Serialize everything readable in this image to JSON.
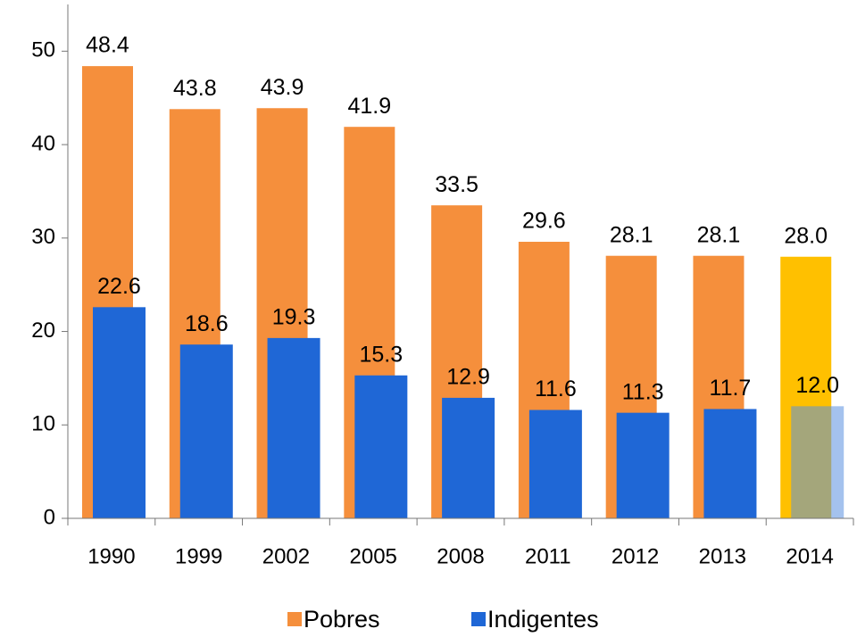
{
  "chart_data": {
    "type": "bar",
    "categories": [
      "1990",
      "1999",
      "2002",
      "2005",
      "2008",
      "2011",
      "2012",
      "2013",
      "2014"
    ],
    "series": [
      {
        "name": "Pobres",
        "color": "#f58f3c",
        "point_colors": [
          "#f58f3c",
          "#f58f3c",
          "#f58f3c",
          "#f58f3c",
          "#f58f3c",
          "#f58f3c",
          "#f58f3c",
          "#f58f3c",
          "#ffc000"
        ],
        "values": [
          48.4,
          43.8,
          43.9,
          41.9,
          33.5,
          29.6,
          28.1,
          28.1,
          28.0
        ],
        "value_labels": [
          "48.4",
          "43.8",
          "43.9",
          "41.9",
          "33.5",
          "29.6",
          "28.1",
          "28.1",
          "28.0"
        ]
      },
      {
        "name": "Indigentes",
        "color": "#1f67d6",
        "point_colors": [
          "#1f67d6",
          "#1f67d6",
          "#1f67d6",
          "#1f67d6",
          "#1f67d6",
          "#1f67d6",
          "#1f67d6",
          "#1f67d6",
          "#5a8fe0"
        ],
        "values": [
          22.6,
          18.6,
          19.3,
          15.3,
          12.9,
          11.6,
          11.3,
          11.7,
          12.0
        ],
        "value_labels": [
          "22.6",
          "18.6",
          "19.3",
          "15.3",
          "12.9",
          "11.6",
          "11.3",
          "11.7",
          "12.0"
        ]
      }
    ],
    "ylim": [
      0,
      55
    ],
    "yticks": [
      0,
      10,
      20,
      30,
      40,
      50
    ],
    "legend": "bottom"
  }
}
